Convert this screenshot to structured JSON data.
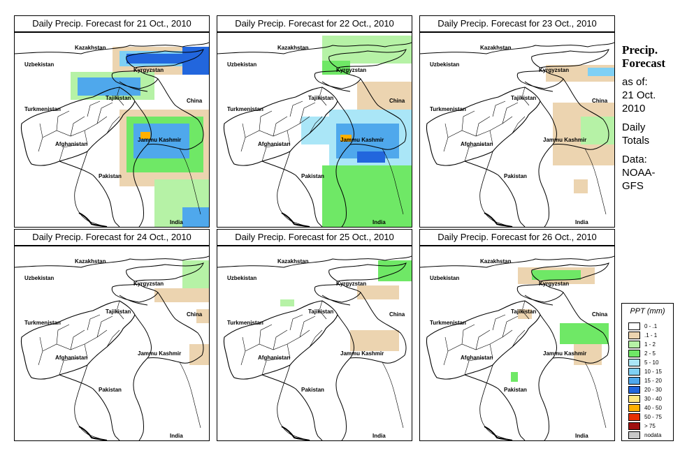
{
  "panels": [
    {
      "title": "Daily Precip. Forecast for  21 Oct., 2010"
    },
    {
      "title": "Daily Precip. Forecast for  22 Oct., 2010"
    },
    {
      "title": "Daily Precip. Forecast for  23 Oct., 2010"
    },
    {
      "title": "Daily Precip. Forecast for  24 Oct., 2010"
    },
    {
      "title": "Daily Precip. Forecast for  25 Oct., 2010"
    },
    {
      "title": "Daily Precip. Forecast for  26 Oct., 2010"
    }
  ],
  "map_labels": {
    "kazakhstan": "Kazakhstan",
    "uzbekistan": "Uzbekistan",
    "kyrgyzstan": "Kyrgyzstan",
    "tajikistan": "Tajikistan",
    "turkmenistan": "Turkmenistan",
    "china": "China",
    "afghanistan": "Afghanistan",
    "jammu_kashmir": "Jammu Kashmir",
    "pakistan": "Pakistan",
    "india": "India"
  },
  "sidebar": {
    "heading_line1": "Precip.",
    "heading_line2": "Forecast",
    "asof_line1": "as of:",
    "asof_line2": "21 Oct.",
    "asof_line3": "2010",
    "totals_line1": "Daily",
    "totals_line2": "Totals",
    "data_line1": "Data:",
    "data_line2": "NOAA-",
    "data_line3": "GFS"
  },
  "legend": {
    "title": "PPT (mm)",
    "items": [
      {
        "label": "0 - .1",
        "color": "#ffffff"
      },
      {
        "label": ".1 - 1",
        "color": "#ecd4b0"
      },
      {
        "label": "1 - 2",
        "color": "#b6f2a6"
      },
      {
        "label": "2 - 5",
        "color": "#6fe866"
      },
      {
        "label": "5 - 10",
        "color": "#aae6f7"
      },
      {
        "label": "10 - 15",
        "color": "#7fd0f4"
      },
      {
        "label": "15 - 20",
        "color": "#4fa8ec"
      },
      {
        "label": "20 - 30",
        "color": "#2266dd"
      },
      {
        "label": "30 - 40",
        "color": "#ffe680"
      },
      {
        "label": "40 - 50",
        "color": "#ffb000"
      },
      {
        "label": "50 - 75",
        "color": "#e83000"
      },
      {
        "label": "> 75",
        "color": "#a01010"
      },
      {
        "label": "nodata",
        "color": "#c8c8c8"
      }
    ]
  }
}
